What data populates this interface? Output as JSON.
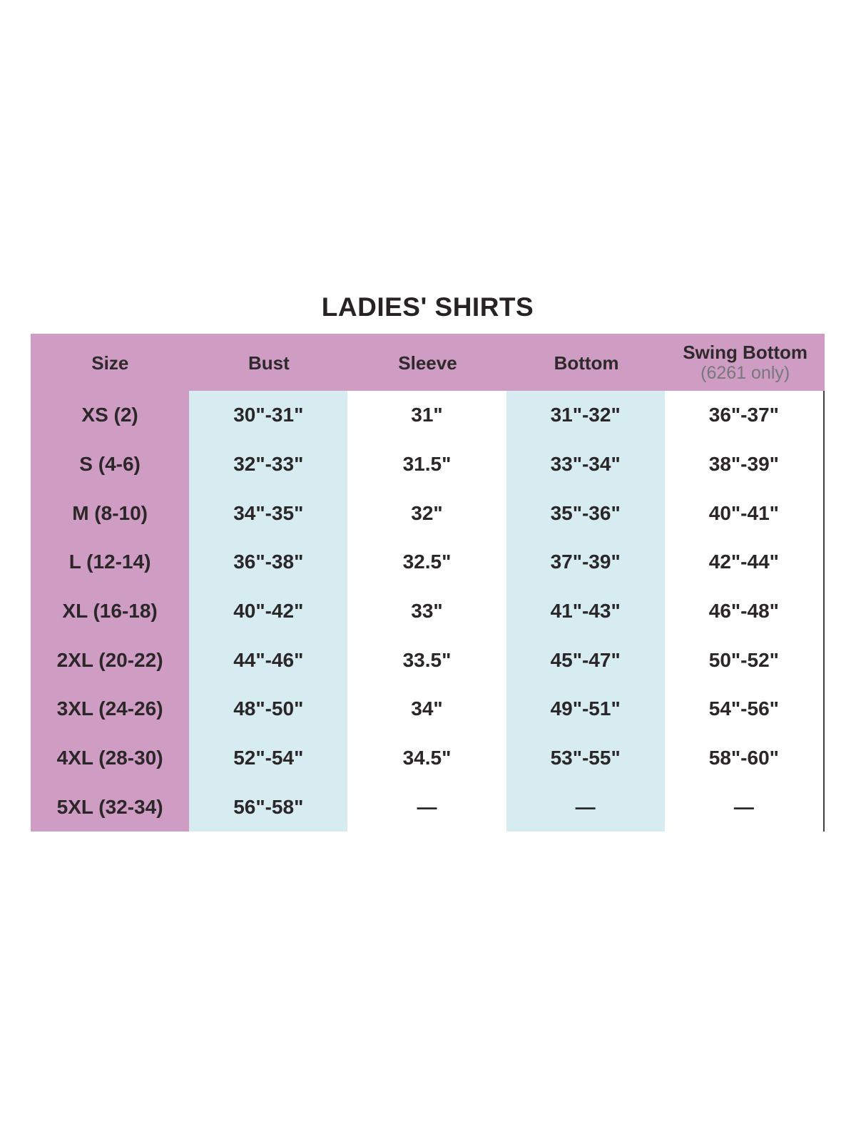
{
  "title": "LADIES' SHIRTS",
  "table": {
    "columns": [
      {
        "label": "Size",
        "sub": ""
      },
      {
        "label": "Bust",
        "sub": ""
      },
      {
        "label": "Sleeve",
        "sub": ""
      },
      {
        "label": "Bottom",
        "sub": ""
      },
      {
        "label": "Swing Bottom",
        "sub": "(6261 only)"
      }
    ],
    "rows": [
      [
        "XS (2)",
        "30\"-31\"",
        "31\"",
        "31\"-32\"",
        "36\"-37\""
      ],
      [
        "S (4-6)",
        "32\"-33\"",
        "31.5\"",
        "33\"-34\"",
        "38\"-39\""
      ],
      [
        "M (8-10)",
        "34\"-35\"",
        "32\"",
        "35\"-36\"",
        "40\"-41\""
      ],
      [
        "L (12-14)",
        "36\"-38\"",
        "32.5\"",
        "37\"-39\"",
        "42\"-44\""
      ],
      [
        "XL (16-18)",
        "40\"-42\"",
        "33\"",
        "41\"-43\"",
        "46\"-48\""
      ],
      [
        "2XL (20-22)",
        "44\"-46\"",
        "33.5\"",
        "45\"-47\"",
        "50\"-52\""
      ],
      [
        "3XL (24-26)",
        "48\"-50\"",
        "34\"",
        "49\"-51\"",
        "54\"-56\""
      ],
      [
        "4XL (28-30)",
        "52\"-54\"",
        "34.5\"",
        "53\"-55\"",
        "58\"-60\""
      ],
      [
        "5XL (32-34)",
        "56\"-58\"",
        "—",
        "—",
        "—"
      ]
    ]
  },
  "chart_data": {
    "type": "table",
    "title": "LADIES' SHIRTS",
    "columns": [
      "Size",
      "Bust",
      "Sleeve",
      "Bottom",
      "Swing Bottom (6261 only)"
    ],
    "rows": [
      [
        "XS (2)",
        "30\"-31\"",
        "31\"",
        "31\"-32\"",
        "36\"-37\""
      ],
      [
        "S (4-6)",
        "32\"-33\"",
        "31.5\"",
        "33\"-34\"",
        "38\"-39\""
      ],
      [
        "M (8-10)",
        "34\"-35\"",
        "32\"",
        "35\"-36\"",
        "40\"-41\""
      ],
      [
        "L (12-14)",
        "36\"-38\"",
        "32.5\"",
        "37\"-39\"",
        "42\"-44\""
      ],
      [
        "XL (16-18)",
        "40\"-42\"",
        "33\"",
        "41\"-43\"",
        "46\"-48\""
      ],
      [
        "2XL (20-22)",
        "44\"-46\"",
        "33.5\"",
        "45\"-47\"",
        "50\"-52\""
      ],
      [
        "3XL (24-26)",
        "48\"-50\"",
        "34\"",
        "49\"-51\"",
        "54\"-56\""
      ],
      [
        "4XL (28-30)",
        "52\"-54\"",
        "34.5\"",
        "53\"-55\"",
        "58\"-60\""
      ],
      [
        "5XL (32-34)",
        "56\"-58\"",
        "—",
        "—",
        "—"
      ]
    ]
  },
  "colors": {
    "header_pink": "#cf9cc3",
    "stripe_blue": "#d7ecf1",
    "text_dark": "#272324",
    "subtext_gray": "#77787c",
    "border_line": "#414042"
  }
}
